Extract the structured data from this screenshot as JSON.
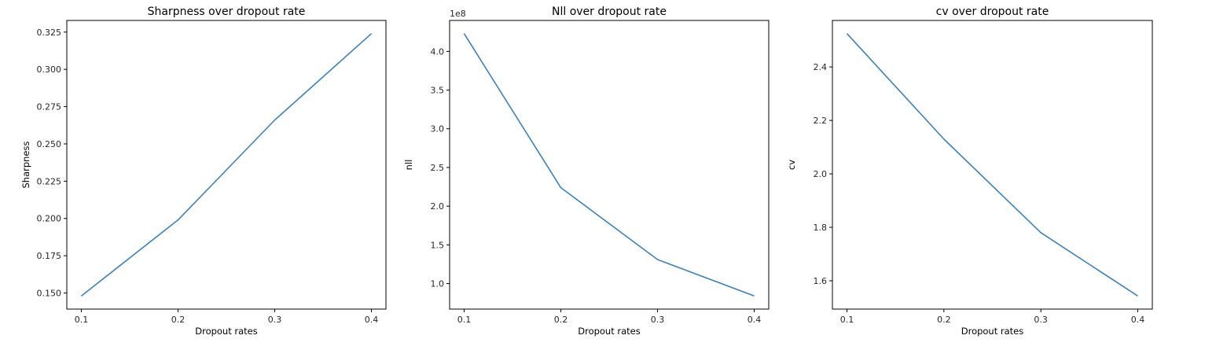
{
  "chart_data": [
    {
      "type": "line",
      "title": "Sharpness over dropout rate",
      "xlabel": "Dropout rates",
      "ylabel": "Sharpness",
      "x": [
        0.1,
        0.2,
        0.3,
        0.4
      ],
      "series": [
        {
          "values": [
            0.148,
            0.199,
            0.266,
            0.324
          ],
          "color": "#3b82b8"
        }
      ],
      "xlim": [
        0.085,
        0.415
      ],
      "ylim": [
        0.1392,
        0.3328
      ],
      "xticks": [
        0.1,
        0.2,
        0.3,
        0.4
      ],
      "xtick_labels": [
        "0.1",
        "0.2",
        "0.3",
        "0.4"
      ],
      "yticks": [
        0.15,
        0.175,
        0.2,
        0.225,
        0.25,
        0.275,
        0.3,
        0.325
      ],
      "ytick_labels": [
        "0.150",
        "0.175",
        "0.200",
        "0.225",
        "0.250",
        "0.275",
        "0.300",
        "0.325"
      ],
      "offset_text": "",
      "grid": false
    },
    {
      "type": "line",
      "title": "Nll over dropout rate",
      "xlabel": "Dropout rates",
      "ylabel": "nll",
      "x": [
        0.1,
        0.2,
        0.3,
        0.4
      ],
      "series": [
        {
          "values": [
            423000000,
            224000000,
            131000000,
            84000000
          ],
          "color": "#3b82b8"
        }
      ],
      "xlim": [
        0.085,
        0.415
      ],
      "ylim": [
        67000000,
        440000000
      ],
      "xticks": [
        0.1,
        0.2,
        0.3,
        0.4
      ],
      "xtick_labels": [
        "0.1",
        "0.2",
        "0.3",
        "0.4"
      ],
      "yticks": [
        100000000,
        150000000,
        200000000,
        250000000,
        300000000,
        350000000,
        400000000
      ],
      "ytick_labels": [
        "1.0",
        "1.5",
        "2.0",
        "2.5",
        "3.0",
        "3.5",
        "4.0"
      ],
      "offset_text": "1e8",
      "grid": false
    },
    {
      "type": "line",
      "title": "cv over dropout rate",
      "xlabel": "Dropout rates",
      "ylabel": "cv",
      "x": [
        0.1,
        0.2,
        0.3,
        0.4
      ],
      "series": [
        {
          "values": [
            2.525,
            2.13,
            1.78,
            1.543
          ],
          "color": "#3b82b8"
        }
      ],
      "xlim": [
        0.085,
        0.415
      ],
      "ylim": [
        1.494,
        2.574
      ],
      "xticks": [
        0.1,
        0.2,
        0.3,
        0.4
      ],
      "xtick_labels": [
        "0.1",
        "0.2",
        "0.3",
        "0.4"
      ],
      "yticks": [
        1.6,
        1.8,
        2.0,
        2.2,
        2.4
      ],
      "ytick_labels": [
        "1.6",
        "1.8",
        "2.0",
        "2.2",
        "2.4"
      ],
      "offset_text": "",
      "grid": false
    }
  ]
}
